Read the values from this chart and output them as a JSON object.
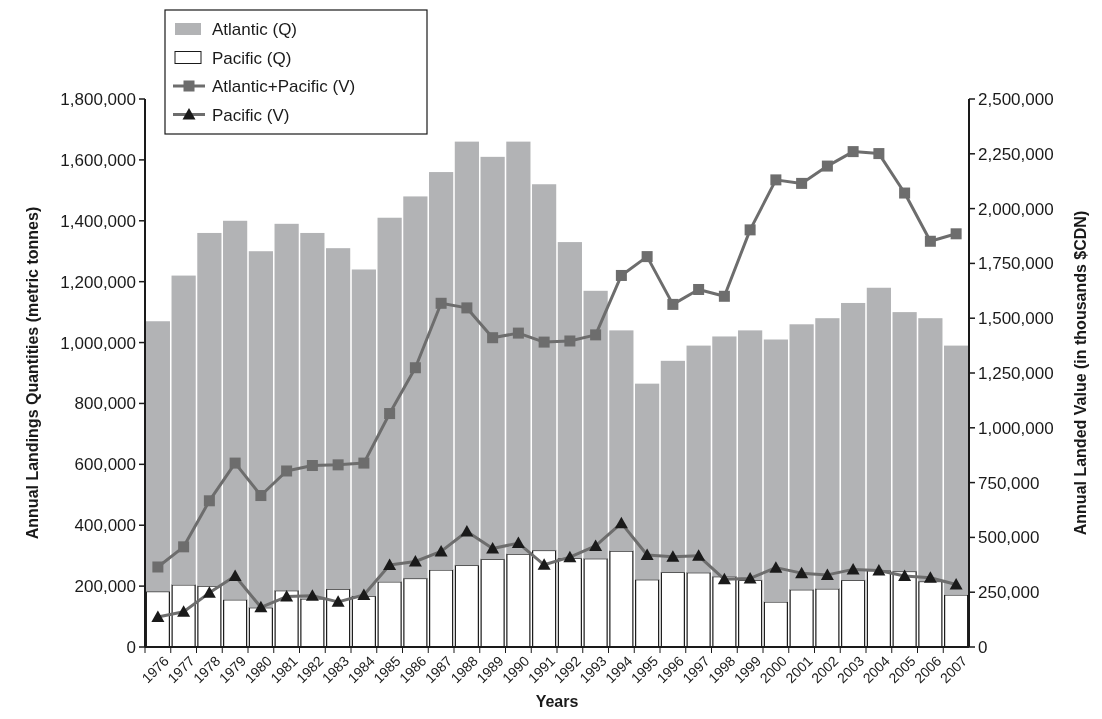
{
  "chart_data": {
    "type": "bar",
    "xlabel": "Years",
    "ylabel": "Annual Landings Quantities  (metric tonnes)",
    "y2label": "Annual Landed Value (in thousands $CDN)",
    "categories": [
      "1976",
      "1977",
      "1978",
      "1979",
      "1980",
      "1981",
      "1982",
      "1983",
      "1984",
      "1985",
      "1986",
      "1987",
      "1988",
      "1989",
      "1990",
      "1991",
      "1992",
      "1993",
      "1994",
      "1995",
      "1996",
      "1997",
      "1998",
      "1999",
      "2000",
      "2001",
      "2002",
      "2003",
      "2004",
      "2005",
      "2006",
      "2007"
    ],
    "series": [
      {
        "name": "Pacific (Q)",
        "color": "#ffffff",
        "values": [
          182000,
          204000,
          200000,
          155000,
          129000,
          185000,
          158000,
          190000,
          167000,
          214000,
          225000,
          253000,
          268000,
          288000,
          305000,
          317000,
          291000,
          290000,
          315000,
          221000,
          245000,
          244000,
          231000,
          219000,
          148000,
          188000,
          191000,
          219000,
          251000,
          248000,
          215000,
          171000
        ]
      },
      {
        "name": "Atlantic (Q)",
        "color": "#b2b3b5",
        "values": [
          888000,
          1016000,
          1160000,
          1245000,
          1171000,
          1205000,
          1202000,
          1120000,
          1073000,
          1196000,
          1255000,
          1307000,
          1392000,
          1322000,
          1355000,
          1203000,
          1039000,
          880000,
          725000,
          644000,
          695000,
          746000,
          789000,
          821000,
          862000,
          872000,
          889000,
          911000,
          929000,
          852000,
          865000,
          819000
        ]
      },
      {
        "name": "Atlantic+Pacific (V)",
        "type": "line",
        "axis": "y2",
        "marker": "square",
        "color": "#6d6d6d",
        "values": [
          365000,
          457000,
          667000,
          839000,
          691000,
          803000,
          828000,
          831000,
          839000,
          1065000,
          1274000,
          1568000,
          1547000,
          1411000,
          1432000,
          1391000,
          1396000,
          1424000,
          1695000,
          1781000,
          1563000,
          1631000,
          1600000,
          1903000,
          2131000,
          2115000,
          2194000,
          2260000,
          2251000,
          2071000,
          1851000,
          1885000
        ]
      },
      {
        "name": "Pacific (V)",
        "type": "line",
        "axis": "y2",
        "marker": "triangle",
        "color": "#6d6d6d",
        "values": [
          137000,
          161000,
          247000,
          324000,
          181000,
          230000,
          234000,
          206000,
          237000,
          374000,
          390000,
          436000,
          527000,
          449000,
          474000,
          375000,
          410000,
          461000,
          565000,
          420000,
          412000,
          416000,
          309000,
          313000,
          362000,
          337000,
          329000,
          354000,
          349000,
          324000,
          316000,
          285000
        ]
      }
    ],
    "ylim": [
      0,
      1800000
    ],
    "yticks": [
      {
        "value": 0,
        "label": "0"
      },
      {
        "value": 200000,
        "label": "200,000"
      },
      {
        "value": 400000,
        "label": "400,000"
      },
      {
        "value": 600000,
        "label": "600,000"
      },
      {
        "value": 800000,
        "label": "800,000"
      },
      {
        "value": 1000000,
        "label": "1,000,000"
      },
      {
        "value": 1200000,
        "label": "1,200,000"
      },
      {
        "value": 1400000,
        "label": "1,400,000"
      },
      {
        "value": 1600000,
        "label": "1,600,000"
      },
      {
        "value": 1800000,
        "label": "1,800,000"
      }
    ],
    "y2lim": [
      0,
      2500000
    ],
    "y2ticks": [
      {
        "value": 0,
        "label": "0"
      },
      {
        "value": 250000,
        "label": "250,000"
      },
      {
        "value": 500000,
        "label": "500,000"
      },
      {
        "value": 750000,
        "label": "750,000"
      },
      {
        "value": 1000000,
        "label": "1,000,000"
      },
      {
        "value": 1250000,
        "label": "1,250,000"
      },
      {
        "value": 1500000,
        "label": "1,500,000"
      },
      {
        "value": 1750000,
        "label": "1,750,000"
      },
      {
        "value": 2000000,
        "label": "2,000,000"
      },
      {
        "value": 2250000,
        "label": "2,250,000"
      },
      {
        "value": 2500000,
        "label": "2,500,000"
      }
    ],
    "stacked": true,
    "legend": "top left",
    "grid": false
  }
}
